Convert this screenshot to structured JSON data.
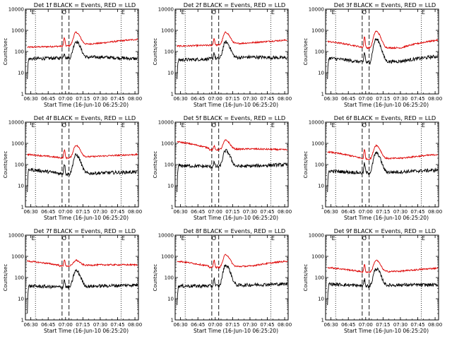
{
  "chart_data": {
    "type": "line",
    "common": {
      "ylabel": "Counts/sec",
      "xlabel": "Start Time (16-Jun-10 06:25:20)",
      "x_tick_labels": [
        "06:30",
        "06:45",
        "07:00",
        "07:15",
        "07:30",
        "07:45",
        "08:00"
      ],
      "y_tick_labels": [
        "1",
        "10",
        "100",
        "1000",
        "10000"
      ],
      "y_scale": "log",
      "ylim": [
        1,
        10000
      ],
      "xlim": [
        "06:25:20",
        "08:03:00"
      ],
      "dotted_lines": [
        "06:34",
        "07:48"
      ],
      "dashed_lines": [
        "06:57",
        "07:03"
      ],
      "markers": [
        "E",
        "O",
        "E"
      ],
      "series_colors": {
        "events": "#000000",
        "lld": "#dd0000"
      }
    },
    "panels": [
      {
        "title": "Det 1f BLACK = Events, RED = LLD",
        "lld": {
          "baseline": [
            160,
            180,
            250,
            380
          ],
          "dip_at_0700": 220,
          "spike_0700": 450,
          "peak_0710": 800,
          "end": 380
        },
        "events": {
          "start": 5,
          "baseline": [
            45,
            50,
            55,
            45
          ],
          "spike_0700": 85,
          "peak_0710": 300,
          "end": 40
        }
      },
      {
        "title": "Det 2f BLACK = Events, RED = LLD",
        "lld": {
          "baseline": [
            180,
            200,
            260,
            350
          ],
          "dip_at_0700": 220,
          "spike_0700": 420,
          "peak_0710": 800,
          "end": 350
        },
        "events": {
          "start": 5,
          "baseline": [
            40,
            45,
            55,
            50
          ],
          "spike_0700": 90,
          "peak_0710": 280,
          "end": 55
        }
      },
      {
        "title": "Det 3f BLACK = Events, RED = LLD",
        "lld": {
          "baseline": [
            300,
            150,
            150,
            350
          ],
          "dip_at_0700": 200,
          "spike_0700": 500,
          "peak_0710": 900,
          "end": 350
        },
        "events": {
          "start": 5,
          "baseline": [
            50,
            30,
            35,
            60
          ],
          "spike_0700": 90,
          "peak_0710": 380,
          "end": 60
        }
      },
      {
        "title": "Det 4f BLACK = Events, RED = LLD",
        "lld": {
          "baseline": [
            300,
            200,
            250,
            300
          ],
          "dip_at_0700": 250,
          "spike_0700": 500,
          "peak_0710": 800,
          "end": 300
        },
        "events": {
          "start": 5,
          "baseline": [
            60,
            35,
            40,
            45
          ],
          "spike_0700": 110,
          "peak_0710": 280,
          "end": 45
        }
      },
      {
        "title": "Det 5f BLACK = Events, RED = LLD",
        "lld": {
          "baseline": [
            1200,
            500,
            550,
            500
          ],
          "dip_at_0700": 500,
          "spike_0700": 750,
          "peak_0710": 1400,
          "end": 500
        },
        "events": {
          "start": 5,
          "baseline": [
            90,
            80,
            85,
            100
          ],
          "spike_0700": 130,
          "peak_0710": 450,
          "end": 100
        }
      },
      {
        "title": "Det 6f BLACK = Events, RED = LLD",
        "lld": {
          "baseline": [
            400,
            180,
            200,
            300
          ],
          "dip_at_0700": 220,
          "spike_0700": 500,
          "peak_0710": 800,
          "end": 300
        },
        "events": {
          "start": 5,
          "baseline": [
            50,
            40,
            45,
            55
          ],
          "spike_0700": 110,
          "peak_0710": 350,
          "end": 55
        }
      },
      {
        "title": "Det 7f BLACK = Events, RED = LLD",
        "lld": {
          "baseline": [
            600,
            350,
            400,
            400
          ],
          "dip_at_0700": 350,
          "spike_0700": 700,
          "peak_0710": 650,
          "end": 450
        },
        "events": {
          "start": 2,
          "baseline": [
            40,
            35,
            40,
            45
          ],
          "spike_0700": 80,
          "peak_0710": 210,
          "end": 45
        }
      },
      {
        "title": "Det 8f BLACK = Events, RED = LLD",
        "lld": {
          "baseline": [
            600,
            300,
            350,
            600
          ],
          "dip_at_0700": 300,
          "spike_0700": 700,
          "peak_0710": 1200,
          "end": 600
        },
        "events": {
          "start": 5,
          "baseline": [
            40,
            40,
            45,
            50
          ],
          "spike_0700": 90,
          "peak_0710": 380,
          "end": 50
        }
      },
      {
        "title": "Det 9f BLACK = Events, RED = LLD",
        "lld": {
          "baseline": [
            300,
            180,
            200,
            280
          ],
          "dip_at_0700": 200,
          "spike_0700": 400,
          "peak_0710": 650,
          "end": 280
        },
        "events": {
          "start": 5,
          "baseline": [
            50,
            40,
            45,
            45
          ],
          "spike_0700": 80,
          "peak_0710": 260,
          "end": 45
        }
      }
    ]
  }
}
